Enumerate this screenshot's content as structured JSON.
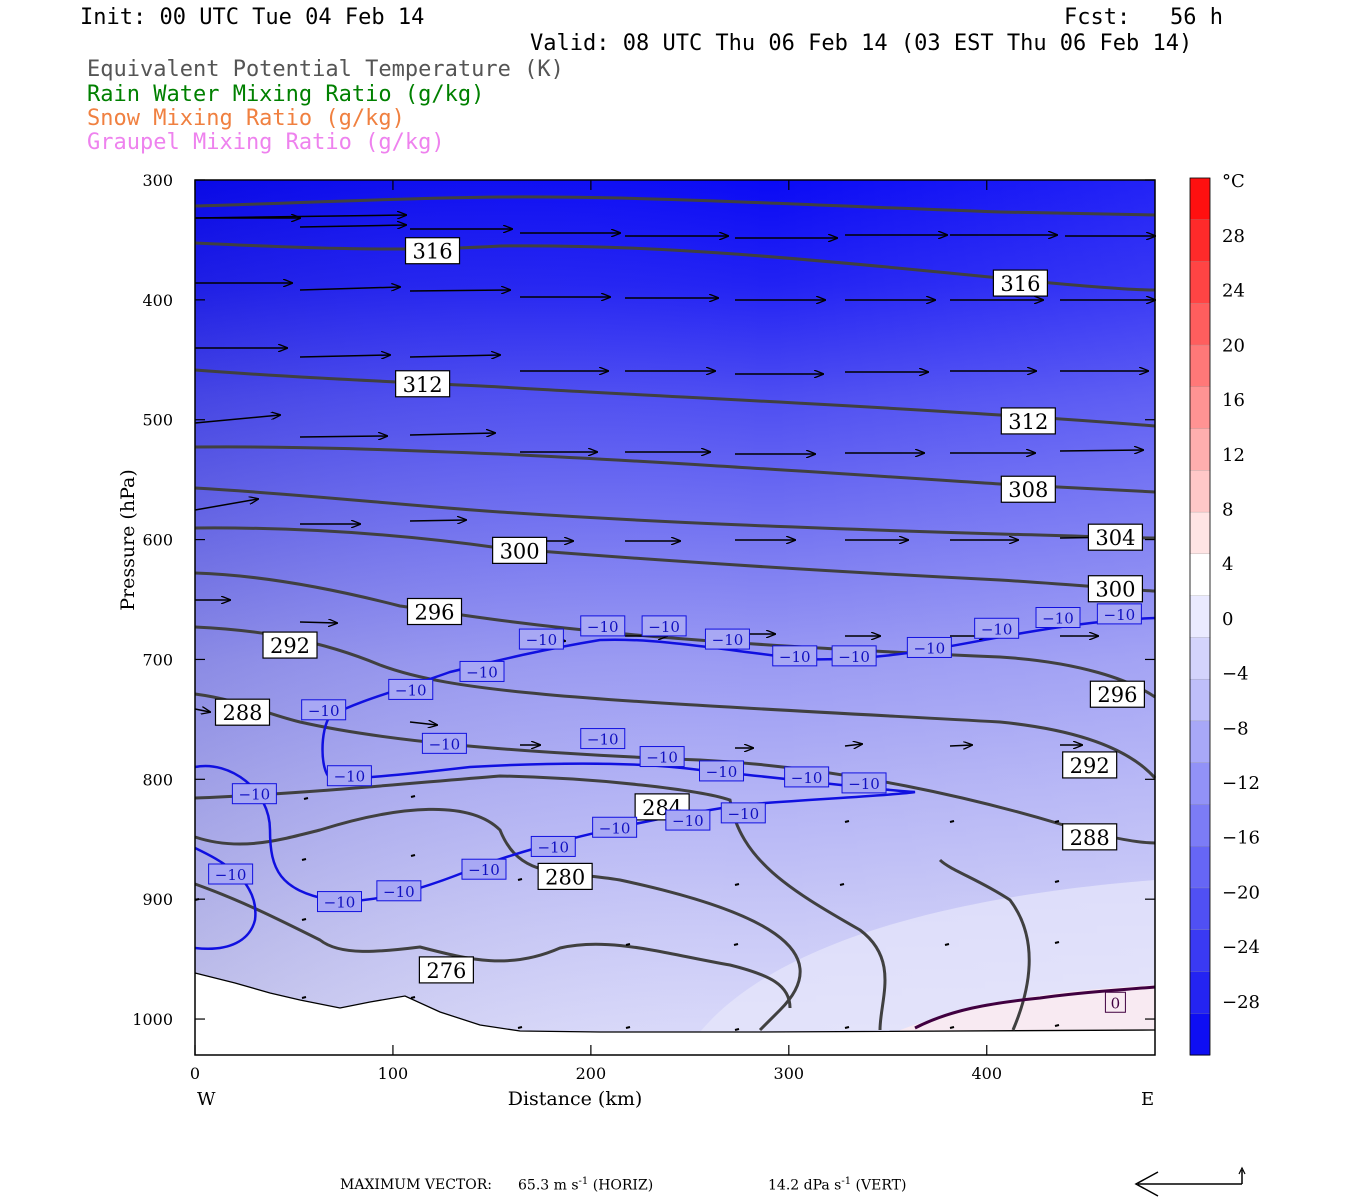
{
  "header": {
    "init": "Init: 00 UTC Tue 04 Feb 14",
    "fcst": "Fcst:   56 h",
    "valid": "Valid: 08 UTC Thu 06 Feb 14 (03 EST Thu 06 Feb 14)"
  },
  "legend": [
    {
      "label": "Equivalent Potential Temperature (K)",
      "color": "#555555"
    },
    {
      "label": "Rain Water Mixing Ratio (g/kg)",
      "color": "#008000"
    },
    {
      "label": "Snow Mixing Ratio (g/kg)",
      "color": "#f08040"
    },
    {
      "label": "Graupel Mixing Ratio (g/kg)",
      "color": "#ee82ee"
    }
  ],
  "footer": {
    "max_vector_label": "MAXIMUM VECTOR:",
    "horiz_value": "65.3 m s",
    "horiz_unit": " (HORIZ)",
    "vert_value": "14.2 dPa s",
    "vert_unit": " (VERT)",
    "exp": "-1"
  },
  "chart_data": {
    "type": "cross-section",
    "xlabel": "Distance (km)",
    "ylabel": "Pressure (hPa)",
    "x_range": [
      0,
      485
    ],
    "y_range": [
      300,
      1030
    ],
    "x_ticks": [
      0,
      100,
      200,
      300,
      400
    ],
    "y_ticks": [
      300,
      400,
      500,
      600,
      700,
      800,
      900,
      1000
    ],
    "x_ends": {
      "left": "W",
      "right": "E"
    },
    "colorbar": {
      "unit": "°C",
      "ticks": [
        "28",
        "24",
        "20",
        "16",
        "12",
        "8",
        "4",
        "0",
        "-4",
        "-8",
        "-12",
        "-16",
        "-20",
        "-24",
        "-28"
      ]
    },
    "theta_e_labels": [
      {
        "value": "316",
        "x": 120,
        "p": 359
      },
      {
        "value": "316",
        "x": 417,
        "p": 386
      },
      {
        "value": "312",
        "x": 115,
        "p": 470
      },
      {
        "value": "312",
        "x": 421,
        "p": 501
      },
      {
        "value": "308",
        "x": 421,
        "p": 558
      },
      {
        "value": "304",
        "x": 465,
        "p": 598
      },
      {
        "value": "300",
        "x": 164,
        "p": 609
      },
      {
        "value": "300",
        "x": 465,
        "p": 641
      },
      {
        "value": "296",
        "x": 121,
        "p": 660
      },
      {
        "value": "296",
        "x": 466,
        "p": 729
      },
      {
        "value": "292",
        "x": 48,
        "p": 688
      },
      {
        "value": "292",
        "x": 452,
        "p": 788
      },
      {
        "value": "288",
        "x": 24,
        "p": 744
      },
      {
        "value": "288",
        "x": 452,
        "p": 848
      },
      {
        "value": "284",
        "x": 236,
        "p": 823
      },
      {
        "value": "280",
        "x": 187,
        "p": 881
      },
      {
        "value": "276",
        "x": 127,
        "p": 959
      }
    ],
    "temp_labels": [
      {
        "value": "-10",
        "x": 30,
        "p": 812
      },
      {
        "value": "-10",
        "x": 18,
        "p": 879
      },
      {
        "value": "-10",
        "x": 73,
        "p": 902
      },
      {
        "value": "-10",
        "x": 103,
        "p": 893
      },
      {
        "value": "-10",
        "x": 146,
        "p": 875
      },
      {
        "value": "-10",
        "x": 181,
        "p": 856
      },
      {
        "value": "-10",
        "x": 212,
        "p": 840
      },
      {
        "value": "-10",
        "x": 249,
        "p": 834
      },
      {
        "value": "-10",
        "x": 277,
        "p": 828
      },
      {
        "value": "-10",
        "x": 78,
        "p": 797
      },
      {
        "value": "-10",
        "x": 126,
        "p": 770
      },
      {
        "value": "-10",
        "x": 206,
        "p": 766
      },
      {
        "value": "-10",
        "x": 236,
        "p": 781
      },
      {
        "value": "-10",
        "x": 266,
        "p": 793
      },
      {
        "value": "-10",
        "x": 309,
        "p": 798
      },
      {
        "value": "-10",
        "x": 338,
        "p": 803
      },
      {
        "value": "-10",
        "x": 65,
        "p": 742
      },
      {
        "value": "-10",
        "x": 109,
        "p": 725
      },
      {
        "value": "-10",
        "x": 145,
        "p": 710
      },
      {
        "value": "-10",
        "x": 175,
        "p": 683
      },
      {
        "value": "-10",
        "x": 206,
        "p": 672
      },
      {
        "value": "-10",
        "x": 237,
        "p": 672
      },
      {
        "value": "-10",
        "x": 269,
        "p": 683
      },
      {
        "value": "-10",
        "x": 303,
        "p": 697
      },
      {
        "value": "-10",
        "x": 333,
        "p": 697
      },
      {
        "value": "-10",
        "x": 371,
        "p": 690
      },
      {
        "value": "-10",
        "x": 405,
        "p": 674
      },
      {
        "value": "-10",
        "x": 436,
        "p": 665
      },
      {
        "value": "-10",
        "x": 467,
        "p": 662
      },
      {
        "value": "0",
        "x": 465,
        "p": 986
      }
    ]
  }
}
